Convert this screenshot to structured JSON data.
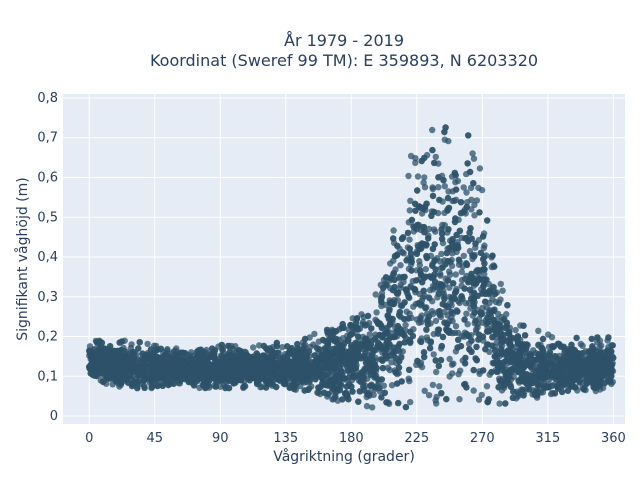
{
  "chart_data": {
    "type": "scatter",
    "title_lines": [
      "År 1979 - 2019",
      "Koordinat (Sweref 99 TM): E 359893, N 6203320"
    ],
    "xlabel": "Vågriktning (grader)",
    "ylabel": "Signifikant våghöjd (m)",
    "xlim": [
      -18,
      368
    ],
    "ylim": [
      -0.02,
      0.81
    ],
    "xticks": [
      0,
      45,
      90,
      135,
      180,
      225,
      270,
      315,
      360
    ],
    "xtick_labels": [
      "0",
      "45",
      "90",
      "135",
      "180",
      "225",
      "270",
      "315",
      "360"
    ],
    "yticks": [
      0,
      0.1,
      0.2,
      0.3,
      0.4,
      0.5,
      0.6,
      0.7,
      0.8
    ],
    "ytick_labels": [
      "0",
      "0,1",
      "0,2",
      "0,3",
      "0,4",
      "0,5",
      "0,6",
      "0,7",
      "0,8"
    ],
    "grid": true,
    "plot_background": "#e5ecf6",
    "grid_color": "#ffffff",
    "marker_color": "#2e5168",
    "envelope": {
      "direction": [
        0,
        15,
        30,
        45,
        60,
        75,
        90,
        105,
        120,
        135,
        150,
        165,
        180,
        195,
        205,
        215,
        225,
        235,
        245,
        255,
        265,
        275,
        285,
        295,
        305,
        315,
        330,
        345,
        360
      ],
      "lower": [
        0.1,
        0.07,
        0.07,
        0.07,
        0.08,
        0.07,
        0.07,
        0.07,
        0.07,
        0.07,
        0.06,
        0.04,
        0.03,
        0.02,
        0.02,
        0.02,
        0.03,
        0.03,
        0.03,
        0.03,
        0.03,
        0.03,
        0.03,
        0.04,
        0.04,
        0.05,
        0.06,
        0.06,
        0.07
      ],
      "upper": [
        0.19,
        0.19,
        0.19,
        0.18,
        0.17,
        0.17,
        0.18,
        0.18,
        0.18,
        0.19,
        0.21,
        0.23,
        0.27,
        0.29,
        0.4,
        0.6,
        0.72,
        0.76,
        0.76,
        0.74,
        0.7,
        0.5,
        0.3,
        0.24,
        0.22,
        0.21,
        0.2,
        0.2,
        0.2
      ]
    }
  }
}
